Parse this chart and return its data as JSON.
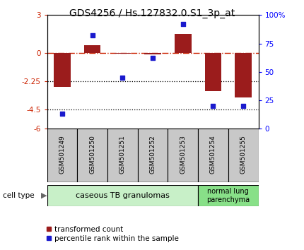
{
  "title": "GDS4256 / Hs.127832.0.S1_3p_at",
  "samples": [
    "GSM501249",
    "GSM501250",
    "GSM501251",
    "GSM501252",
    "GSM501253",
    "GSM501254",
    "GSM501255"
  ],
  "red_bars": [
    -2.7,
    0.6,
    -0.05,
    -0.1,
    1.5,
    -3.0,
    -3.5
  ],
  "blue_dots": [
    13,
    82,
    45,
    62,
    92,
    20,
    20
  ],
  "ylim_left": [
    -6,
    3
  ],
  "ylim_right": [
    0,
    100
  ],
  "yticks_left": [
    -6,
    -4.5,
    -2.25,
    0,
    3
  ],
  "yticks_left_labels": [
    "-6",
    "-4.5",
    "-2.25",
    "0",
    "3"
  ],
  "yticks_right": [
    0,
    25,
    50,
    75,
    100
  ],
  "yticks_right_labels": [
    "0",
    "25",
    "50",
    "75",
    "100%"
  ],
  "hlines_dotted": [
    -2.25,
    -4.5
  ],
  "dashed_hline": 0,
  "group1_n": 5,
  "group2_n": 2,
  "group1_label": "caseous TB granulomas",
  "group2_label": "normal lung\nparenchyma",
  "cell_type_label": "cell type",
  "legend_red": "transformed count",
  "legend_blue": "percentile rank within the sample",
  "bar_color": "#9b1c1c",
  "dot_color": "#1a1acd",
  "group1_color": "#c8f0c8",
  "group2_color": "#88e088",
  "label_box_color": "#c8c8c8",
  "bar_width": 0.55,
  "title_fontsize": 10
}
